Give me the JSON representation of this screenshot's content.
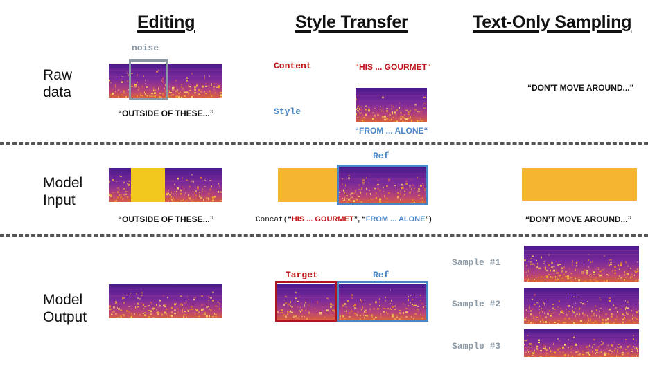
{
  "headers": {
    "editing": "Editing",
    "style_transfer": "Style Transfer",
    "text_only": "Text-Only Sampling"
  },
  "rows": {
    "raw_line1": "Raw",
    "raw_line2": "data",
    "input_line1": "Model",
    "input_line2": "Input",
    "output_line1": "Model",
    "output_line2": "Output"
  },
  "editing": {
    "noise_label": "noise",
    "raw_caption": "“OUTSIDE OF THESE...”",
    "input_caption": "“OUTSIDE OF THESE...”"
  },
  "style_transfer": {
    "content_label": "Content",
    "content_text": "“HIS ... GOURMET“",
    "style_label": "Style",
    "style_text": "“FROM ... ALONE“",
    "ref_label_input": "Ref",
    "concat_prefix": "Concat(",
    "concat_open1": "“",
    "concat_red": "HIS ... GOURMET",
    "concat_mid": "”, “",
    "concat_blue": "FROM ... ALONE",
    "concat_close": "”)",
    "target_label": "Target",
    "ref_label_output": "Ref"
  },
  "text_only": {
    "raw_caption": "“DON’T MOVE AROUND...”",
    "input_caption": "“DON’T MOVE AROUND...”",
    "samples": [
      "Sample #1",
      "Sample #2",
      "Sample #3"
    ]
  },
  "colors": {
    "content_red": "#c0141c",
    "style_blue": "#4a86c5",
    "mask_yellow": "#f3c81e",
    "mask_orange": "#f5b52e",
    "noise_box_grey": "#8a98a4"
  }
}
